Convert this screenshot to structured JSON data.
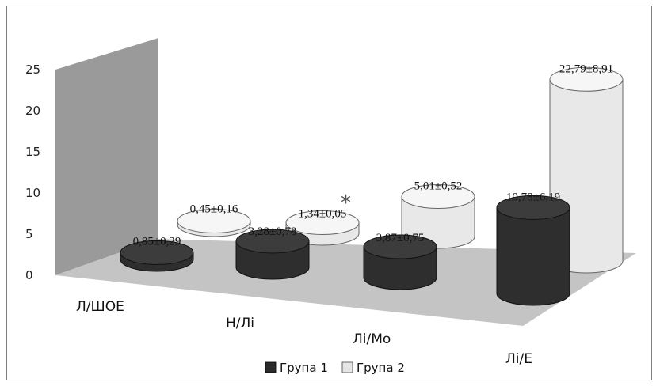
{
  "chart_data": {
    "type": "bar",
    "style": "3d-cylinder",
    "categories": [
      "Л/ШОЕ",
      "Н/Лі",
      "Лі/Мо",
      "Лі/Е"
    ],
    "series": [
      {
        "name": "Група 1",
        "color": "#2b2b2b",
        "values": [
          0.85,
          3.28,
          3.87,
          10.78
        ],
        "labels": [
          "0,85±0,29",
          "3,28±0,78",
          "3,87±0,75",
          "10,78±6,19"
        ]
      },
      {
        "name": "Група 2",
        "color": "#e6e6e6",
        "values": [
          0.45,
          1.34,
          5.01,
          22.79
        ],
        "labels": [
          "0,45±0,16",
          "1,34±0,05",
          "5,01±0,52",
          "22,79±8,91"
        ]
      }
    ],
    "ylim": [
      0,
      25
    ],
    "yticks": [
      "0",
      "5",
      "10",
      "15",
      "20",
      "25"
    ],
    "annotations": [
      {
        "text": "*",
        "category": "Н/Лі",
        "series": "Група 2"
      }
    ],
    "legend": "bottom",
    "grid": false
  }
}
